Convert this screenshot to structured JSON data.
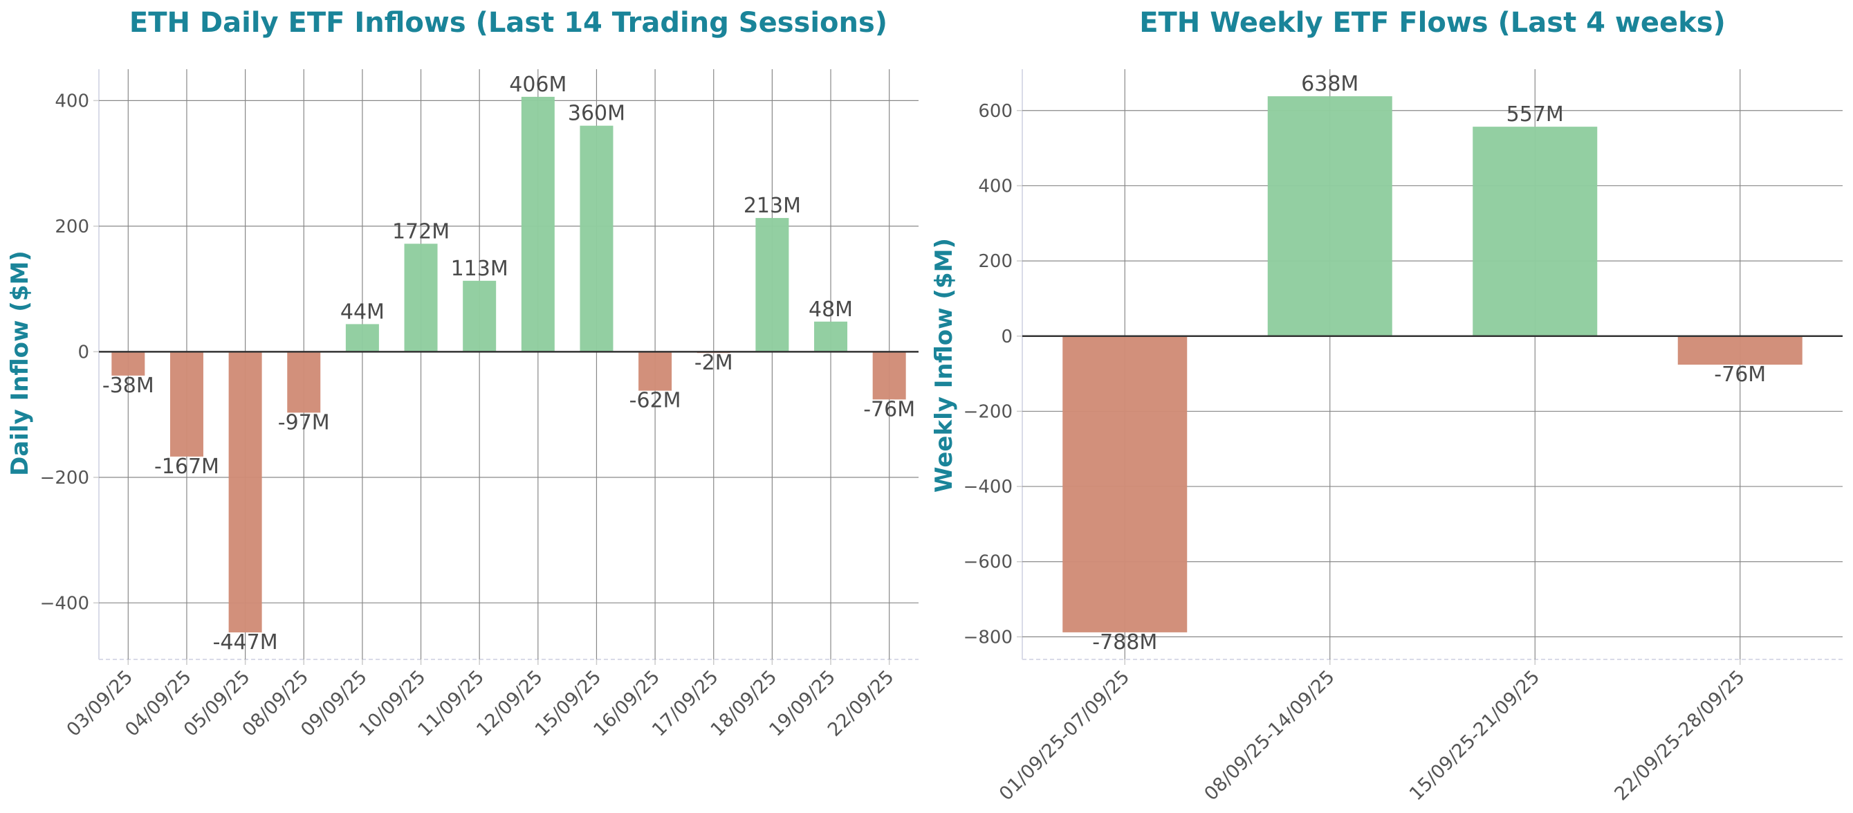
{
  "colors": {
    "positive": "#8fcd9f",
    "negative": "#d18c77",
    "title": "#1a8499",
    "grid": "#888888",
    "zero_line": "#333333",
    "text": "#555555"
  },
  "chart_data": [
    {
      "type": "bar",
      "title": "ETH Daily ETF Inflows (Last 14 Trading Sessions)",
      "xlabel": "",
      "ylabel": "Daily Inflow ($M)",
      "categories": [
        "03/09/25",
        "04/09/25",
        "05/09/25",
        "08/09/25",
        "09/09/25",
        "10/09/25",
        "11/09/25",
        "12/09/25",
        "15/09/25",
        "16/09/25",
        "17/09/25",
        "18/09/25",
        "19/09/25",
        "22/09/25"
      ],
      "values": [
        -38,
        -167,
        -447,
        -97,
        44,
        172,
        113,
        406,
        360,
        -62,
        -2,
        213,
        48,
        -76
      ],
      "labels": [
        "-38M",
        "-167M",
        "-447M",
        "-97M",
        "44M",
        "172M",
        "113M",
        "406M",
        "360M",
        "-62M",
        "-2M",
        "213M",
        "48M",
        "-76M"
      ],
      "yticks": [
        -400,
        -200,
        0,
        200,
        400
      ],
      "ytick_labels": [
        "−400",
        "−200",
        "0",
        "200",
        "400"
      ],
      "ylim": [
        -490,
        450
      ],
      "grid": true
    },
    {
      "type": "bar",
      "title": "ETH Weekly ETF Flows (Last 4 weeks)",
      "xlabel": "",
      "ylabel": "Weekly Inflow ($M)",
      "categories": [
        "01/09/25-07/09/25",
        "08/09/25-14/09/25",
        "15/09/25-21/09/25",
        "22/09/25-28/09/25"
      ],
      "values": [
        -788,
        638,
        557,
        -76
      ],
      "labels": [
        "-788M",
        "638M",
        "557M",
        "-76M"
      ],
      "yticks": [
        -800,
        -600,
        -400,
        -200,
        0,
        200,
        400,
        600
      ],
      "ytick_labels": [
        "−800",
        "−600",
        "−400",
        "−200",
        "0",
        "200",
        "400",
        "600"
      ],
      "ylim": [
        -860,
        710
      ],
      "grid": true
    }
  ]
}
